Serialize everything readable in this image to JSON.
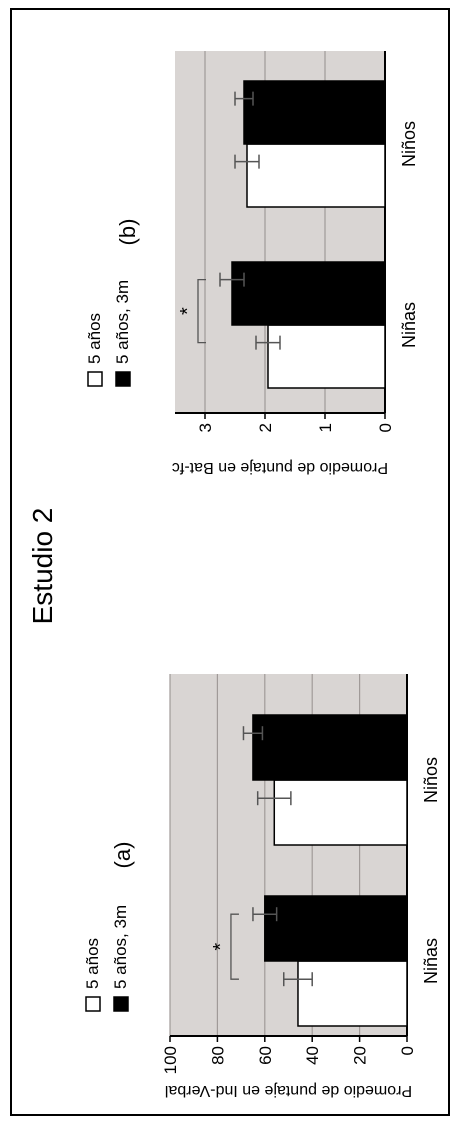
{
  "figure": {
    "title": "Estudio 2"
  },
  "colors": {
    "plot_background": "#d9d5d3",
    "gridline": "#a09a98",
    "bar_5_anos": "#ffffff",
    "bar_5_anos_3m": "#000000"
  },
  "chart_data": [
    {
      "type": "bar",
      "panel_label": "(a)",
      "categories": [
        "Niñas",
        "Niños"
      ],
      "series": [
        {
          "name": "5 años",
          "values": [
            46,
            56
          ],
          "error": [
            6,
            7
          ],
          "color": "#ffffff"
        },
        {
          "name": "5 años, 3m",
          "values": [
            60,
            65
          ],
          "error": [
            5,
            4
          ],
          "color": "#000000"
        }
      ],
      "ylabel": "Promedio de puntaje en Ind-Verbal",
      "xlabel": "",
      "ylim": [
        0,
        100
      ],
      "yticks": [
        "0",
        "20",
        "40",
        "60",
        "80",
        "100"
      ],
      "grid": true,
      "legend": "top",
      "annotations": [
        {
          "text": "*",
          "category": "Niñas"
        }
      ]
    },
    {
      "type": "bar",
      "panel_label": "(b)",
      "categories": [
        "Niñas",
        "Niños"
      ],
      "series": [
        {
          "name": "5 años",
          "values": [
            1.95,
            2.3
          ],
          "error": [
            0.2,
            0.2
          ],
          "color": "#ffffff"
        },
        {
          "name": "5 años, 3m",
          "values": [
            2.55,
            2.35
          ],
          "error": [
            0.2,
            0.15
          ],
          "color": "#000000"
        }
      ],
      "ylabel": "Promedio de puntaje en Bat-fc",
      "xlabel": "",
      "ylim": [
        0,
        3.5
      ],
      "yticks": [
        "0",
        "1",
        "2",
        "3"
      ],
      "grid": true,
      "legend": "top",
      "annotations": [
        {
          "text": "*",
          "category": "Niñas"
        }
      ]
    }
  ]
}
